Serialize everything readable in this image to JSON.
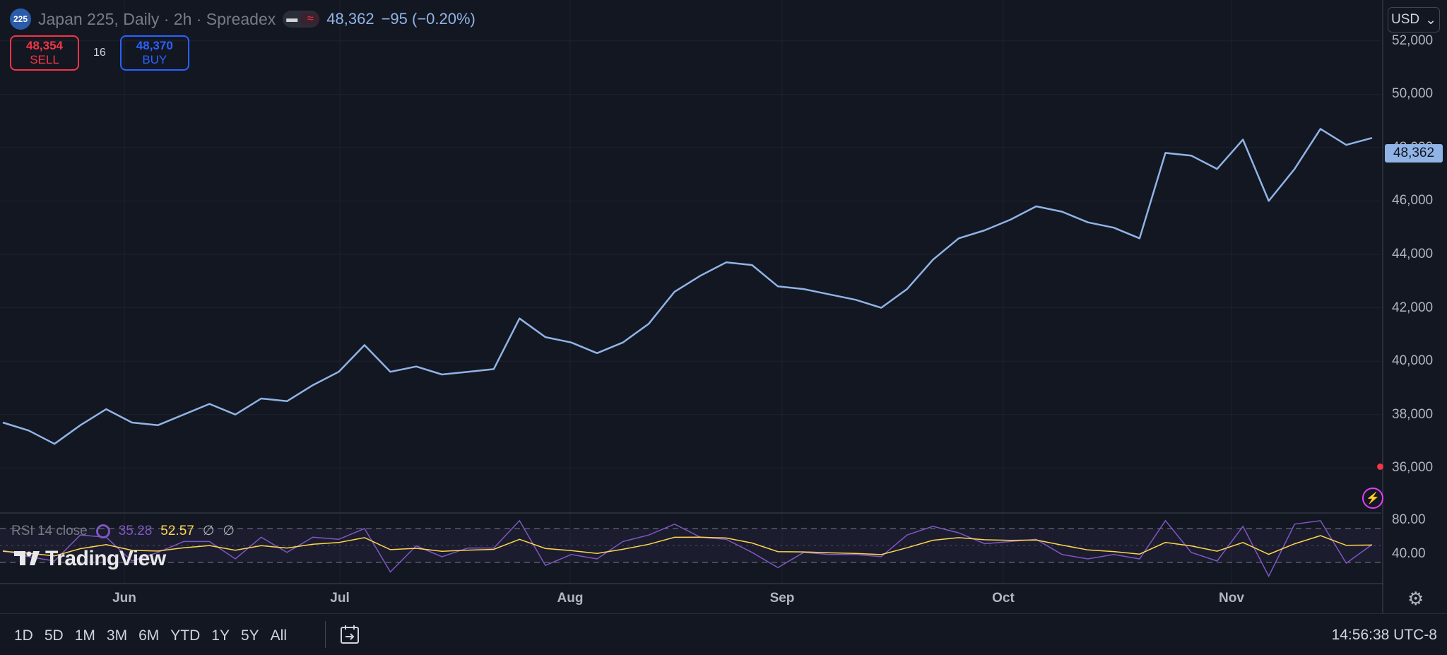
{
  "symbol": {
    "badge": "225",
    "title": "Japan 225, Daily · 2h · Spreadex",
    "last": "48,362",
    "change": "−95 (−0.20%)"
  },
  "trade": {
    "sell_price": "48,354",
    "sell_label": "SELL",
    "spread": "16",
    "buy_price": "48,370",
    "buy_label": "BUY"
  },
  "currency": "USD",
  "price_tag": "48,362",
  "rsi": {
    "name": "RSI 14 close",
    "value": "35.28",
    "ma": "52.57",
    "na1": "∅",
    "na2": "∅",
    "levels": [
      "80.00",
      "40.00"
    ]
  },
  "logo": "TradingView",
  "range_buttons": [
    "1D",
    "5D",
    "1M",
    "3M",
    "6M",
    "YTD",
    "1Y",
    "5Y",
    "All"
  ],
  "clock": "14:56:38 UTC-8",
  "colors": {
    "line": "#90b4e6",
    "rsi": "#7e57c2",
    "rsi_ma": "#ffd54f",
    "bg": "#131722"
  },
  "chart_data": {
    "type": "line",
    "ylim": [
      35000,
      53000
    ],
    "yticks": [
      "52,000",
      "50,000",
      "48,000",
      "46,000",
      "44,000",
      "42,000",
      "40,000",
      "38,000",
      "36,000"
    ],
    "x_labels": [
      "Jun",
      "Jul",
      "Aug",
      "Sep",
      "Oct",
      "Nov"
    ],
    "grid": true,
    "series": [
      {
        "x": [
          "May 19",
          "May 22",
          "May 26",
          "May 29",
          "Jun 2",
          "Jun 5",
          "Jun 9",
          "Jun 12",
          "Jun 16",
          "Jun 19",
          "Jun 23",
          "Jun 26",
          "Jun 30",
          "Jul 3",
          "Jul 7",
          "Jul 10",
          "Jul 14",
          "Jul 17",
          "Jul 21",
          "Jul 24",
          "Jul 28",
          "Jul 31",
          "Aug 4",
          "Aug 7",
          "Aug 11",
          "Aug 14",
          "Aug 18",
          "Aug 21",
          "Aug 25",
          "Aug 28",
          "Sep 1",
          "Sep 4",
          "Sep 8",
          "Sep 11",
          "Sep 15",
          "Sep 18",
          "Sep 22",
          "Sep 25",
          "Sep 29",
          "Oct 2",
          "Oct 6",
          "Oct 9",
          "Oct 13",
          "Oct 16",
          "Oct 20",
          "Oct 23",
          "Oct 27",
          "Oct 30",
          "Nov 3",
          "Nov 6",
          "Nov 10",
          "Nov 13",
          "Nov 17",
          "Nov 20"
        ],
        "values": [
          37700,
          37400,
          36900,
          37600,
          38200,
          37700,
          37600,
          38000,
          38400,
          38000,
          38600,
          38500,
          39100,
          39600,
          40600,
          39600,
          39800,
          39500,
          39600,
          39700,
          41600,
          40900,
          40700,
          40300,
          40700,
          41400,
          42600,
          43200,
          43700,
          43600,
          42800,
          42700,
          42500,
          42300,
          42000,
          42700,
          43800,
          44600,
          44900,
          45300,
          45800,
          45600,
          45200,
          45000,
          44600,
          47800,
          47700,
          47200,
          48300,
          46000,
          47200,
          48700,
          48100,
          48362
        ]
      }
    ]
  }
}
